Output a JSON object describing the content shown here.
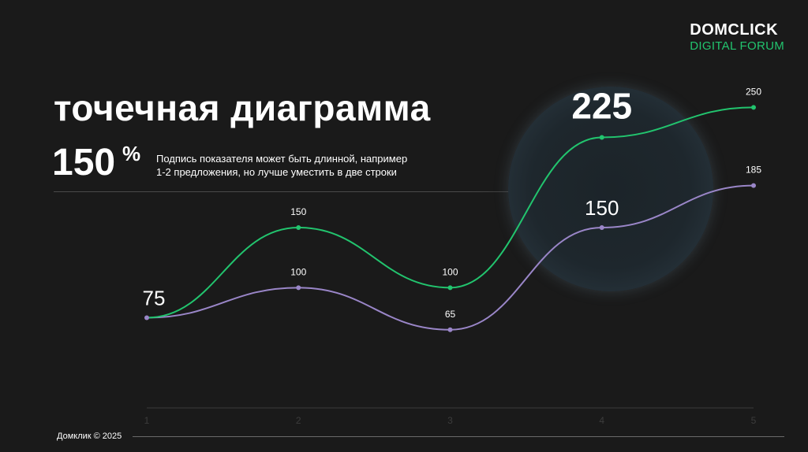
{
  "logo": {
    "brand": "DOMCLICK",
    "sub": "DIGITAL FORUM",
    "brand_color": "#ffffff",
    "sub_color": "#22c46e"
  },
  "title": "точечная диаграмма",
  "kpi": {
    "value": "150",
    "unit": "%",
    "caption_line1": "Подпись показателя может быть длинной, например",
    "caption_line2": "1-2 предложения, но лучше уместить в две строки"
  },
  "footer": "Домклик © 2025",
  "colors": {
    "background": "#1a1a1a",
    "green": "#22c46e",
    "purple": "#9a86c8",
    "axis": "#3a3a3a",
    "tick": "#3c3c3c"
  },
  "chart_data": {
    "type": "line",
    "x": [
      1,
      2,
      3,
      4,
      5
    ],
    "ylim": [
      0,
      300
    ],
    "grid": false,
    "series": [
      {
        "values": [
          75,
          150,
          100,
          225,
          250
        ],
        "labels": [
          "",
          "150",
          "100",
          "225",
          "250"
        ],
        "color": "#22c46e"
      },
      {
        "values": [
          75,
          100,
          65,
          150,
          185
        ],
        "labels": [
          "75",
          "100",
          "65",
          "150",
          "185"
        ],
        "color": "#9a86c8"
      }
    ],
    "highlight": {
      "series": 0,
      "index": 3,
      "value": "225"
    }
  }
}
